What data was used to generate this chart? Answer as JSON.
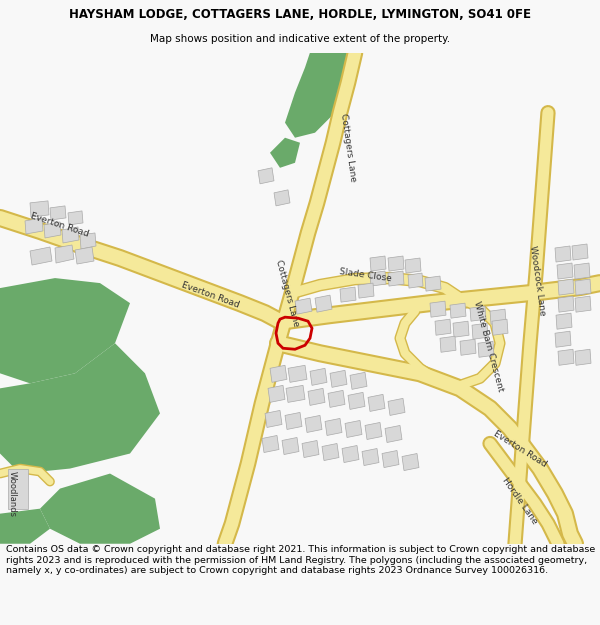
{
  "title_line1": "HAYSHAM LODGE, COTTAGERS LANE, HORDLE, LYMINGTON, SO41 0FE",
  "title_line2": "Map shows position and indicative extent of the property.",
  "footer": "Contains OS data © Crown copyright and database right 2021. This information is subject to Crown copyright and database rights 2023 and is reproduced with the permission of HM Land Registry. The polygons (including the associated geometry, namely x, y co-ordinates) are subject to Crown copyright and database rights 2023 Ordnance Survey 100026316.",
  "bg_color": "#f8f8f8",
  "map_bg": "#ffffff",
  "road_yellow": "#f5e99a",
  "road_outline": "#d4b84a",
  "green_color": "#6aaa6a",
  "building_color": "#d8d8d8",
  "building_edge": "#aaaaaa",
  "red_plot": "#cc0000",
  "title_fontsize": 8.5,
  "subtitle_fontsize": 7.5,
  "footer_fontsize": 6.8,
  "label_fontsize": 6.0
}
